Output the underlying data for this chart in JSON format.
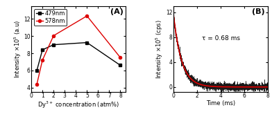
{
  "panel_A": {
    "label": "(A)",
    "black_x": [
      0.5,
      1,
      2,
      5,
      8
    ],
    "black_y": [
      6.0,
      8.4,
      9.0,
      9.25,
      6.6
    ],
    "red_x": [
      0.5,
      1,
      2,
      5,
      8
    ],
    "red_y": [
      4.4,
      7.2,
      10.05,
      12.35,
      7.5
    ],
    "xlabel": "Dy$^{3+}$ concentration (atm%)",
    "ylabel": "Intensity ×10$^{5}$ (a.u)",
    "ylim": [
      3.5,
      13.5
    ],
    "xlim": [
      0,
      8.5
    ],
    "yticks": [
      4,
      6,
      8,
      10,
      12
    ],
    "xticks": [
      0,
      1,
      2,
      3,
      4,
      5,
      6,
      7,
      8
    ],
    "legend_479": "479nm",
    "legend_578": "578nm",
    "black_color": "#000000",
    "red_color": "#dd0000"
  },
  "panel_B": {
    "label": "(B)",
    "annotation": "τ = 0.68 ms",
    "xlabel": "Time (ms)",
    "ylabel": "Intensity ×10$^{5}$ (cps)",
    "ylim": [
      -0.8,
      13.0
    ],
    "xlim": [
      0,
      8
    ],
    "yticks": [
      0,
      4,
      8,
      12
    ],
    "xticks": [
      0,
      2,
      4,
      6,
      8
    ],
    "decay_amplitude": 12.0,
    "decay_tau": 0.68,
    "noise_std": 0.3,
    "black_color": "#000000",
    "red_color": "#dd0000"
  },
  "background_color": "#ffffff",
  "axis_label_fontsize": 6.0,
  "tick_fontsize": 5.5,
  "legend_fontsize": 6.0,
  "label_fontsize": 8.0
}
